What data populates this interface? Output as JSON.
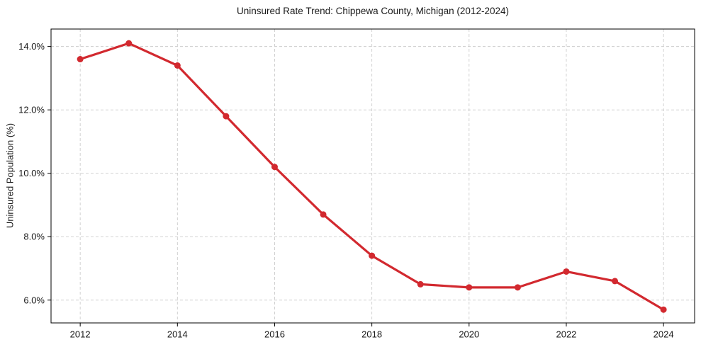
{
  "figure": {
    "title": "Uninsured Rate Trend: Chippewa County, Michigan (2012-2024)"
  },
  "chart_data": {
    "type": "line",
    "title": "Uninsured Rate Trend: Chippewa County, Michigan (2012-2024)",
    "xlabel": "",
    "ylabel": "Uninsured Population (%)",
    "x": [
      2012,
      2013,
      2014,
      2015,
      2016,
      2017,
      2018,
      2019,
      2020,
      2021,
      2022,
      2023,
      2024
    ],
    "values": [
      13.6,
      14.1,
      13.4,
      11.8,
      10.2,
      8.7,
      7.4,
      6.5,
      6.4,
      6.4,
      6.9,
      6.6,
      5.7
    ],
    "x_ticks": {
      "values": [
        2012,
        2014,
        2016,
        2018,
        2020,
        2022,
        2024
      ],
      "labels": [
        "2012",
        "2014",
        "2016",
        "2018",
        "2020",
        "2022",
        "2024"
      ]
    },
    "y_ticks": {
      "values": [
        6,
        8,
        10,
        12,
        14
      ],
      "labels": [
        "6.0%",
        "8.0%",
        "10.0%",
        "12.0%",
        "14.0%"
      ]
    },
    "xlim": [
      2011.4,
      2024.64
    ],
    "ylim": [
      5.28,
      14.55
    ],
    "grid": true,
    "grid_style": "dashed",
    "legend": false,
    "marker": "circle"
  },
  "colors": {
    "line": "#d2292f",
    "grid": "#cccccc",
    "axis": "#000000",
    "text": "#1a1a1a",
    "background": "#ffffff"
  }
}
